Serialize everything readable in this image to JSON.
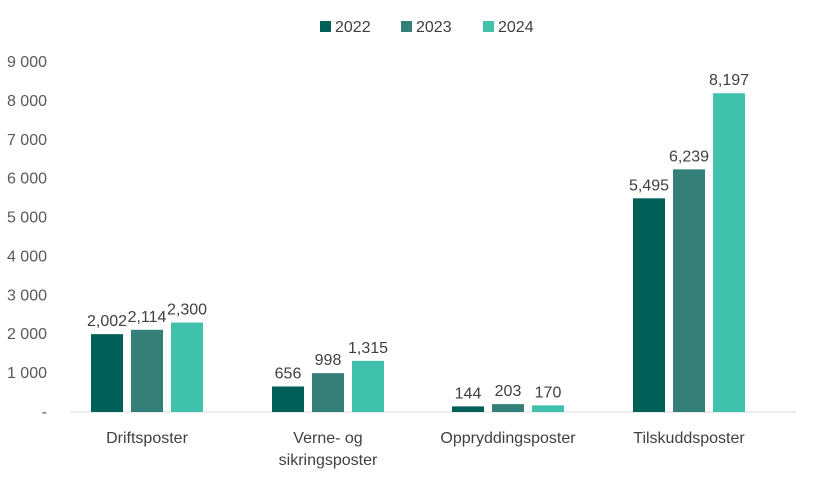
{
  "chart_data": {
    "type": "bar",
    "title": "",
    "xlabel": "",
    "ylabel": "",
    "categories": [
      [
        "Driftsposter"
      ],
      [
        "Verne- og",
        "sikringsposter"
      ],
      [
        "Oppryddingsposter"
      ],
      [
        "Tilskuddsposter"
      ]
    ],
    "series": [
      {
        "name": "2022",
        "values": [
          2002,
          656,
          144,
          5495
        ],
        "labels": [
          "2,002",
          "656",
          "144",
          "5,495"
        ],
        "color": "#005F57"
      },
      {
        "name": "2023",
        "values": [
          2114,
          998,
          203,
          6239
        ],
        "labels": [
          "2,114",
          "998",
          "203",
          "6,239"
        ],
        "color": "#348079"
      },
      {
        "name": "2024",
        "values": [
          2300,
          1315,
          170,
          8197
        ],
        "labels": [
          "2,300",
          "1,315",
          "170",
          "8,197"
        ],
        "color": "#3FC1AC"
      }
    ],
    "ylim": [
      0,
      9000
    ],
    "yticks": [
      {
        "value": 0,
        "label": "-"
      },
      {
        "value": 1000,
        "label": "1 000"
      },
      {
        "value": 2000,
        "label": "2 000"
      },
      {
        "value": 3000,
        "label": "3 000"
      },
      {
        "value": 4000,
        "label": "4 000"
      },
      {
        "value": 5000,
        "label": "5 000"
      },
      {
        "value": 6000,
        "label": "6 000"
      },
      {
        "value": 7000,
        "label": "7 000"
      },
      {
        "value": 8000,
        "label": "8 000"
      },
      {
        "value": 9000,
        "label": "9 000"
      }
    ],
    "grid": false,
    "legend_position": "top-center",
    "axis_color": "#D9D9D9"
  }
}
